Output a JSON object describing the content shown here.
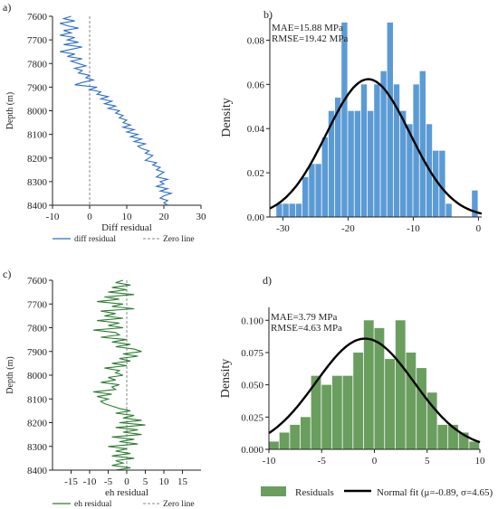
{
  "chart_data": [
    {
      "panel": "a)",
      "type": "line",
      "xlabel": "Diff residual",
      "ylabel": "Depth (m)",
      "xlim": [
        -10,
        30
      ],
      "ylim": [
        8400,
        7600
      ],
      "x_ticks": [
        -10,
        0,
        10,
        20,
        30
      ],
      "y_ticks": [
        7600,
        7700,
        7800,
        7900,
        8000,
        8100,
        8200,
        8300,
        8400
      ],
      "legend": [
        "diff residual",
        "Zero line"
      ],
      "legend_placement": "bottom",
      "color": "#2f6fc9",
      "series": [
        {
          "name": "diff residual",
          "depth": [
            7600,
            7610,
            7620,
            7630,
            7640,
            7650,
            7660,
            7670,
            7680,
            7690,
            7700,
            7710,
            7720,
            7730,
            7740,
            7750,
            7760,
            7770,
            7780,
            7790,
            7800,
            7810,
            7820,
            7830,
            7840,
            7850,
            7860,
            7870,
            7880,
            7890,
            7900,
            7910,
            7920,
            7930,
            7940,
            7950,
            7960,
            7970,
            7980,
            7990,
            8000,
            8010,
            8020,
            8030,
            8040,
            8050,
            8060,
            8070,
            8080,
            8090,
            8100,
            8110,
            8120,
            8130,
            8140,
            8150,
            8160,
            8170,
            8180,
            8190,
            8200,
            8210,
            8220,
            8230,
            8240,
            8250,
            8260,
            8270,
            8280,
            8290,
            8300,
            8310,
            8320,
            8330,
            8340,
            8350,
            8360,
            8370,
            8380,
            8390,
            8400
          ],
          "values": [
            -5,
            -7,
            -4,
            -8,
            -6,
            -3,
            -7,
            -5,
            -8,
            -4,
            -6,
            -3,
            -7,
            -2,
            -5,
            -8,
            -4,
            -6,
            -2,
            -5,
            -3,
            -1,
            -4,
            -2,
            -3,
            0,
            -1,
            1,
            -2,
            -4,
            2,
            0,
            3,
            2,
            5,
            3,
            6,
            4,
            7,
            5,
            8,
            7,
            9,
            8,
            10,
            9,
            11,
            9,
            12,
            10,
            13,
            11,
            14,
            12,
            15,
            13,
            14,
            16,
            15,
            17,
            16,
            15,
            18,
            17,
            19,
            18,
            20,
            19,
            18,
            21,
            19,
            20,
            18,
            21,
            19,
            22,
            20,
            19,
            21,
            20,
            21
          ]
        }
      ]
    },
    {
      "panel": "b)",
      "type": "bar",
      "ylabel": "Density",
      "xlim": [
        -32,
        0.5
      ],
      "ylim": [
        0,
        0.09
      ],
      "x_ticks": [
        -30,
        -20,
        -10,
        0
      ],
      "y_ticks": [
        0.0,
        0.02,
        0.04,
        0.06,
        0.08
      ],
      "annotations": [
        "MAE=15.88 MPa",
        "RMSE=19.42 MPa"
      ],
      "color": "#5b9bd5",
      "bin_width": 1.0,
      "bin_lefts": [
        -31,
        -30,
        -29,
        -28,
        -27,
        -26,
        -25,
        -24,
        -23,
        -22,
        -21,
        -20,
        -19,
        -18,
        -17,
        -16,
        -15,
        -14,
        -13,
        -12,
        -11,
        -10,
        -9,
        -8,
        -7,
        -6,
        -5,
        -1
      ],
      "values": [
        0.006,
        0.006,
        0.006,
        0.006,
        0.018,
        0.024,
        0.024,
        0.036,
        0.048,
        0.054,
        0.088,
        0.048,
        0.048,
        0.06,
        0.048,
        0.06,
        0.066,
        0.088,
        0.06,
        0.048,
        0.042,
        0.06,
        0.066,
        0.042,
        0.03,
        0.03,
        0.006,
        0.012
      ],
      "fit": {
        "type": "normal",
        "mu": -16.9,
        "sigma": 6.4
      }
    },
    {
      "panel": "c)",
      "type": "line",
      "xlabel": "eh residual",
      "ylabel": "Depth (m)",
      "xlim": [
        -20,
        20
      ],
      "ylim": [
        8400,
        7600
      ],
      "x_ticks": [
        -15,
        -10,
        -5,
        0,
        5,
        10,
        15
      ],
      "y_ticks": [
        7600,
        7700,
        7800,
        7900,
        8000,
        8100,
        8200,
        8300,
        8400
      ],
      "legend": [
        "eh residual",
        "Zero line"
      ],
      "legend_placement": "bottom",
      "color": "#2e7d32",
      "series": [
        {
          "name": "eh residual",
          "depth": [
            7600,
            7610,
            7620,
            7630,
            7640,
            7650,
            7660,
            7670,
            7680,
            7690,
            7700,
            7710,
            7720,
            7730,
            7740,
            7750,
            7760,
            7770,
            7780,
            7790,
            7800,
            7810,
            7820,
            7830,
            7840,
            7850,
            7860,
            7870,
            7880,
            7890,
            7900,
            7910,
            7920,
            7930,
            7940,
            7950,
            7960,
            7970,
            7980,
            7990,
            8000,
            8010,
            8020,
            8030,
            8040,
            8050,
            8060,
            8070,
            8080,
            8090,
            8100,
            8110,
            8120,
            8130,
            8140,
            8150,
            8160,
            8170,
            8180,
            8190,
            8200,
            8210,
            8220,
            8230,
            8240,
            8250,
            8260,
            8270,
            8280,
            8290,
            8300,
            8310,
            8320,
            8330,
            8340,
            8350,
            8360,
            8370,
            8380,
            8390,
            8400
          ],
          "values": [
            -1,
            -3,
            1,
            -4,
            0,
            -5,
            2,
            -6,
            -2,
            -8,
            -1,
            -4,
            2,
            -7,
            -3,
            -6,
            -1,
            -8,
            -2,
            -5,
            -1,
            -9,
            -3,
            -2,
            -7,
            0,
            -4,
            1,
            -3,
            2,
            4,
            -1,
            3,
            -2,
            1,
            -4,
            0,
            -6,
            -2,
            -3,
            -1,
            -5,
            -3,
            -7,
            -2,
            -4,
            -3,
            -9,
            -4,
            -8,
            -5,
            -7,
            -6,
            -4,
            -2,
            1,
            -3,
            2,
            -1,
            4,
            -2,
            5,
            -3,
            3,
            -1,
            4,
            -4,
            2,
            -2,
            3,
            -5,
            0,
            -3,
            1,
            -4,
            2,
            -3,
            -1,
            -4,
            1,
            -3
          ]
        }
      ]
    },
    {
      "panel": "d)",
      "type": "bar",
      "ylabel": "Density",
      "xlim": [
        -10,
        10
      ],
      "ylim": [
        0,
        0.11
      ],
      "x_ticks": [
        -10,
        -5,
        0,
        5,
        10
      ],
      "y_ticks": [
        0.0,
        0.025,
        0.05,
        0.075,
        0.1
      ],
      "annotations": [
        "MAE=3.79 MPa",
        "RMSE=4.63 MPa"
      ],
      "color": "#6a9e5f",
      "bin_width": 1.0,
      "bin_lefts": [
        -10,
        -9,
        -8,
        -7,
        -6,
        -5,
        -4,
        -3,
        -2,
        -1,
        0,
        1,
        2,
        3,
        4,
        5,
        6,
        7,
        8,
        9
      ],
      "values": [
        0.006,
        0.013,
        0.019,
        0.025,
        0.057,
        0.05,
        0.057,
        0.057,
        0.075,
        0.1,
        0.094,
        0.07,
        0.1,
        0.075,
        0.063,
        0.044,
        0.019,
        0.019,
        0.013,
        0.006
      ],
      "fit": {
        "type": "normal",
        "mu": -0.89,
        "sigma": 4.65
      },
      "legend": [
        "Residuals",
        "Normal fit (μ=-0.89, σ=4.65)"
      ],
      "legend_placement": "bottom"
    }
  ]
}
